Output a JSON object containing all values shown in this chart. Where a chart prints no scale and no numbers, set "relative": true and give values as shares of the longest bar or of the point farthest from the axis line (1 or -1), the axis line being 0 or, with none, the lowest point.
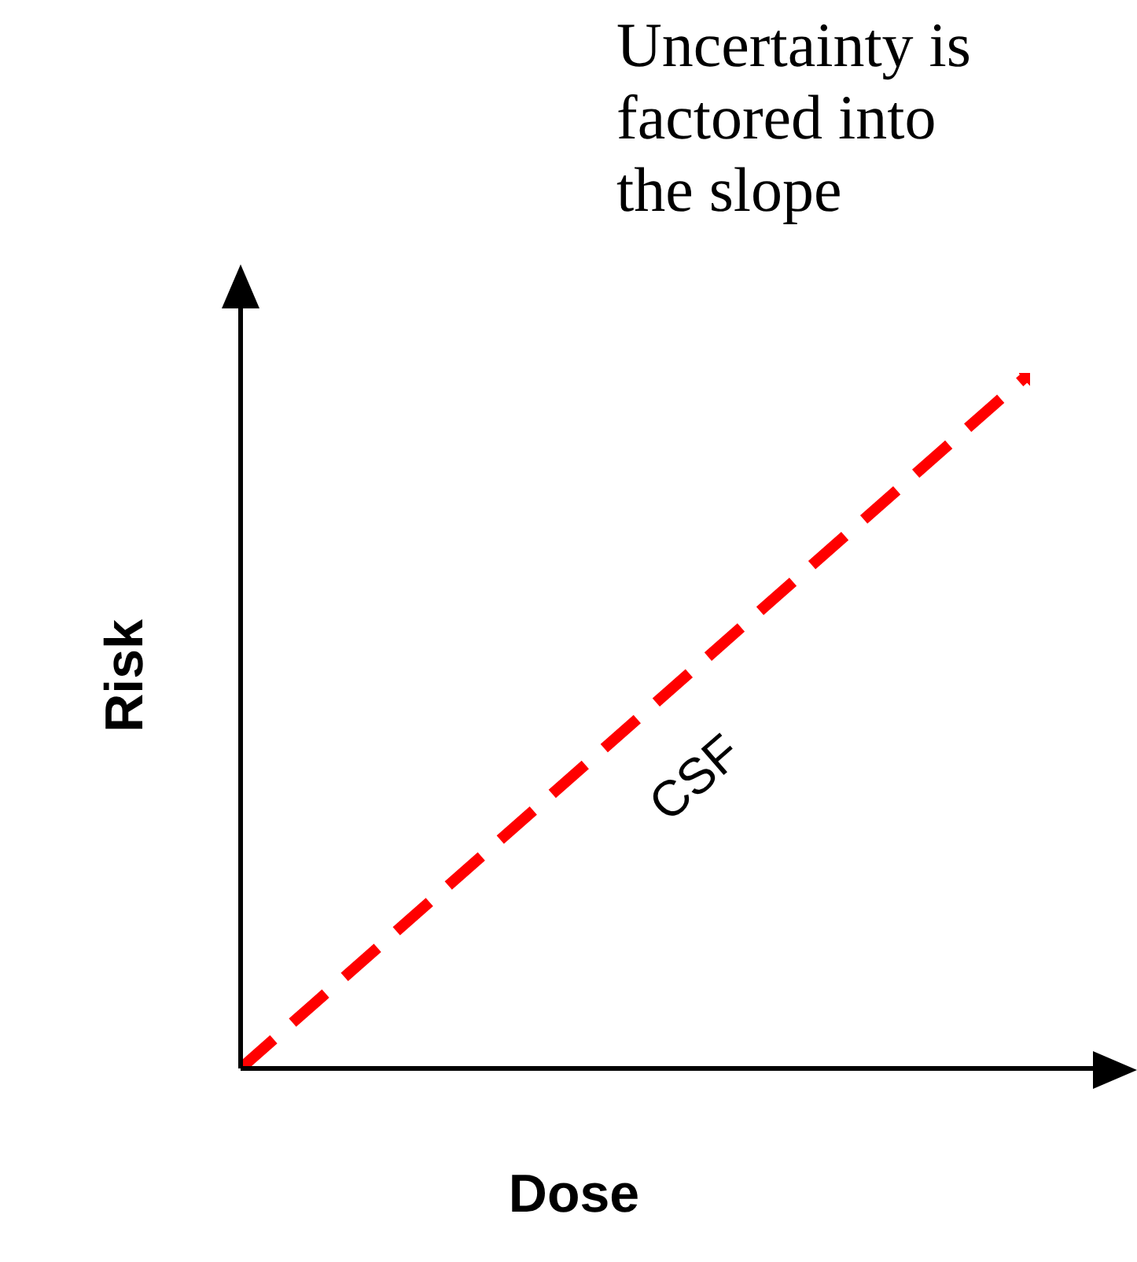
{
  "chart_data": {
    "type": "line",
    "relative": true,
    "xlabel": "Dose",
    "ylabel": "Risk",
    "annotations": [
      "Uncertainty is factored into the slope"
    ],
    "categories": [
      null,
      null
    ],
    "series": [
      {
        "name": "CSF",
        "color": "#ff0000",
        "values": [
          0,
          1
        ]
      }
    ],
    "line_style": "dashed",
    "marker": "none",
    "grid": false,
    "legend": false
  }
}
